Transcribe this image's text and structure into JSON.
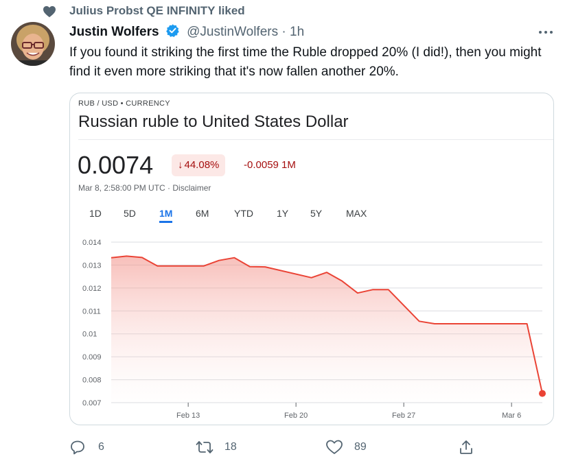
{
  "social_context": {
    "text": "Julius Probst QE INFINITY liked"
  },
  "tweet": {
    "author_name": "Justin Wolfers",
    "handle": "@JustinWolfers",
    "separator": "·",
    "time": "1h",
    "text": "If you found it striking the first time the Ruble dropped 20% (I did!), then you might find it even more striking that it's now fallen another 20%.",
    "actions": {
      "reply_count": "6",
      "retweet_count": "18",
      "like_count": "89"
    }
  },
  "card": {
    "eyebrow": "RUB / USD • CURRENCY",
    "title": "Russian ruble to United States Dollar",
    "price": "0.0074",
    "change_pct": "44.08%",
    "change_arrow": "↓",
    "change_abs": "-0.0059 1M",
    "as_of": "Mar 8, 2:58:00 PM UTC · Disclaimer",
    "ranges": [
      "1D",
      "5D",
      "1M",
      "6M",
      "YTD",
      "1Y",
      "5Y",
      "MAX"
    ],
    "active_range": "1M",
    "colors": {
      "negative": "#a50e0e",
      "line": "#ea4335",
      "accent": "#1a73e8"
    }
  },
  "chart_data": {
    "type": "area",
    "x": [
      "Feb 8",
      "Feb 9",
      "Feb 10",
      "Feb 11",
      "Feb 14",
      "Feb 15",
      "Feb 16",
      "Feb 17",
      "Feb 18",
      "Feb 21",
      "Feb 22",
      "Feb 23",
      "Feb 24",
      "Feb 25",
      "Feb 26",
      "Feb 28",
      "Mar 1",
      "Mar 2",
      "Mar 7",
      "Mar 8"
    ],
    "y": [
      0.01332,
      0.01339,
      0.01333,
      0.01296,
      0.01296,
      0.0132,
      0.01332,
      0.01293,
      0.01292,
      0.01245,
      0.01268,
      0.0123,
      0.01178,
      0.01193,
      0.01193,
      0.01055,
      0.01044,
      0.01044,
      0.01044,
      0.0074
    ],
    "x_ticks": [
      "Feb 13",
      "Feb 20",
      "Feb 27",
      "Mar 6"
    ],
    "y_ticks": [
      "0.014",
      "0.013",
      "0.012",
      "0.011",
      "0.01",
      "0.009",
      "0.008",
      "0.007"
    ],
    "ylim": [
      0.007,
      0.014
    ],
    "grid": true,
    "title": "",
    "xlabel": "",
    "ylabel": ""
  }
}
